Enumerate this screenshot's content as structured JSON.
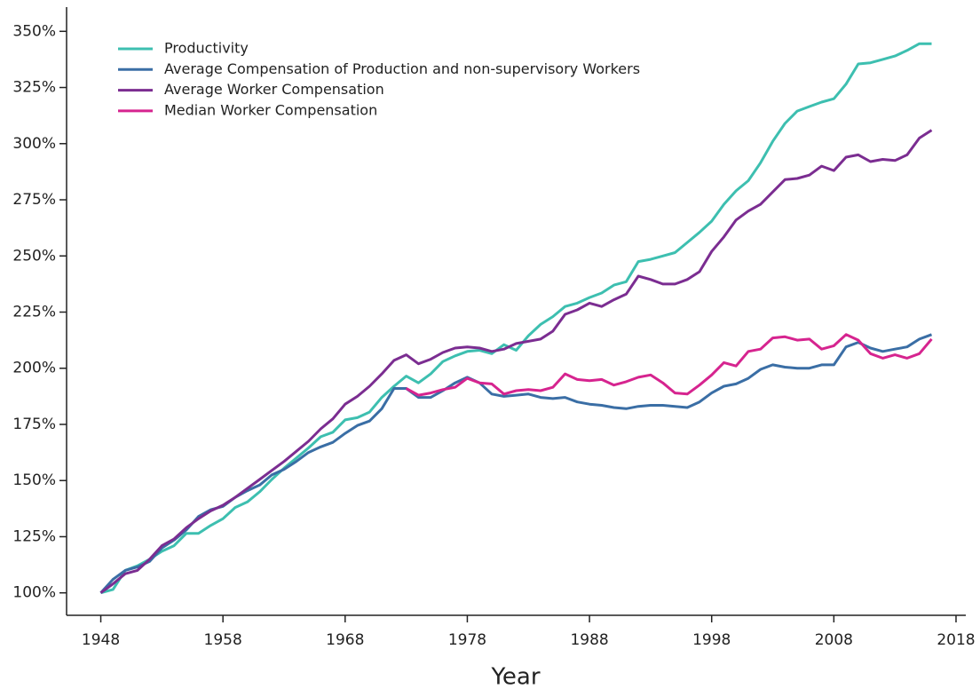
{
  "chart_data": {
    "type": "line",
    "x_label": "Year",
    "x": [
      1948,
      1949,
      1950,
      1951,
      1952,
      1953,
      1954,
      1955,
      1956,
      1957,
      1958,
      1959,
      1960,
      1961,
      1962,
      1963,
      1964,
      1965,
      1966,
      1967,
      1968,
      1969,
      1970,
      1971,
      1972,
      1973,
      1974,
      1975,
      1976,
      1977,
      1978,
      1979,
      1980,
      1981,
      1982,
      1983,
      1984,
      1985,
      1986,
      1987,
      1988,
      1989,
      1990,
      1991,
      1992,
      1993,
      1994,
      1995,
      1996,
      1997,
      1998,
      1999,
      2000,
      2001,
      2002,
      2003,
      2004,
      2005,
      2006,
      2007,
      2008,
      2009,
      2010,
      2011,
      2012,
      2013,
      2014,
      2015,
      2016
    ],
    "series": [
      {
        "name": "Productivity",
        "color": "#3dbfb0",
        "values": [
          100,
          101.5,
          110,
          112,
          115,
          118.5,
          121,
          126.5,
          126.5,
          130,
          133,
          138,
          140.5,
          145,
          150.5,
          155.5,
          160,
          164.5,
          169.5,
          171.5,
          177,
          178,
          180.5,
          187,
          192,
          196.5,
          193.5,
          197.5,
          203,
          205.5,
          207.5,
          208,
          206.5,
          210.5,
          208,
          214.5,
          219.5,
          223,
          227.5,
          229,
          231.5,
          233.5,
          237,
          238.5,
          247.5,
          248.5,
          250,
          251.5,
          256,
          260.5,
          265.5,
          273,
          279,
          283.5,
          291.5,
          301,
          309,
          314.5,
          316.5,
          318.5,
          320,
          326.5,
          335.5,
          336,
          337.5,
          339,
          341.5,
          344.5,
          344.5
        ]
      },
      {
        "name": "Average Compensation of Production and non-supervisory Workers",
        "color": "#3a6ea5",
        "values": [
          100,
          106,
          110,
          111.5,
          114,
          120,
          123.5,
          128,
          134,
          137,
          138.5,
          142.5,
          145.5,
          148,
          152.5,
          155,
          158.5,
          162.5,
          165,
          167,
          171,
          174.5,
          176.5,
          182,
          191,
          191,
          187,
          187,
          190,
          193.5,
          196,
          193.5,
          188.5,
          187.5,
          188,
          188.5,
          187,
          186.5,
          187,
          185,
          184,
          183.5,
          182.5,
          182,
          183,
          183.5,
          183.5,
          183,
          182.5,
          185,
          189,
          192,
          193,
          195.5,
          199.5,
          201.5,
          200.5,
          200,
          200,
          201.5,
          201.5,
          209.5,
          211.5,
          209,
          207.5,
          208.5,
          209.5,
          213,
          215
        ]
      },
      {
        "name": "Average Worker Compensation",
        "color": "#7b2d91",
        "values": [
          100,
          104,
          108.5,
          110,
          115,
          121,
          124,
          129,
          133,
          136.5,
          139,
          142.5,
          146.5,
          150.5,
          154.5,
          158.5,
          163,
          167.5,
          173,
          177.5,
          184,
          187.5,
          192,
          197.5,
          203.5,
          206,
          202,
          204,
          207,
          209,
          209.5,
          209,
          207.5,
          208.5,
          211,
          212,
          213,
          216.5,
          224,
          226,
          229,
          227.5,
          230.5,
          233,
          241,
          239.5,
          237.5,
          237.5,
          239.5,
          243,
          252,
          258.5,
          266,
          270,
          273,
          278.5,
          284,
          284.5,
          286,
          290,
          288,
          294,
          295,
          292,
          293,
          292.5,
          295,
          302.5,
          306
        ]
      },
      {
        "name": "Median Worker Compensation",
        "color": "#d6248f",
        "values": [
          null,
          null,
          null,
          null,
          null,
          null,
          null,
          null,
          null,
          null,
          null,
          null,
          null,
          null,
          null,
          null,
          null,
          null,
          null,
          null,
          null,
          null,
          null,
          null,
          null,
          191,
          188,
          189,
          190.5,
          191.5,
          195.5,
          193.5,
          193,
          188.5,
          190,
          190.5,
          190,
          191.5,
          197.5,
          195,
          194.5,
          195,
          192.5,
          194,
          196,
          197,
          193.5,
          189,
          188.5,
          192.5,
          197,
          202.5,
          201,
          207.5,
          208.5,
          213.5,
          214,
          212.5,
          213,
          208.5,
          210,
          215,
          212.5,
          206.5,
          204.5,
          206,
          204.5,
          206.5,
          213
        ]
      }
    ],
    "xlim": [
      1945.2,
      2018.8
    ],
    "xticks": [
      1948,
      1958,
      1968,
      1978,
      1988,
      1998,
      2008,
      2018
    ],
    "ylim": [
      90,
      360
    ],
    "yticks": [
      {
        "value": 100,
        "label": "100%"
      },
      {
        "value": 125,
        "label": "125%"
      },
      {
        "value": 150,
        "label": "150%"
      },
      {
        "value": 175,
        "label": "175%"
      },
      {
        "value": 200,
        "label": "200%"
      },
      {
        "value": 225,
        "label": "225%"
      },
      {
        "value": 250,
        "label": "250%"
      },
      {
        "value": 275,
        "label": "275%"
      },
      {
        "value": 300,
        "label": "300%"
      },
      {
        "value": 325,
        "label": "325%"
      },
      {
        "value": 350,
        "label": "350%"
      }
    ],
    "legend": "upper left"
  }
}
